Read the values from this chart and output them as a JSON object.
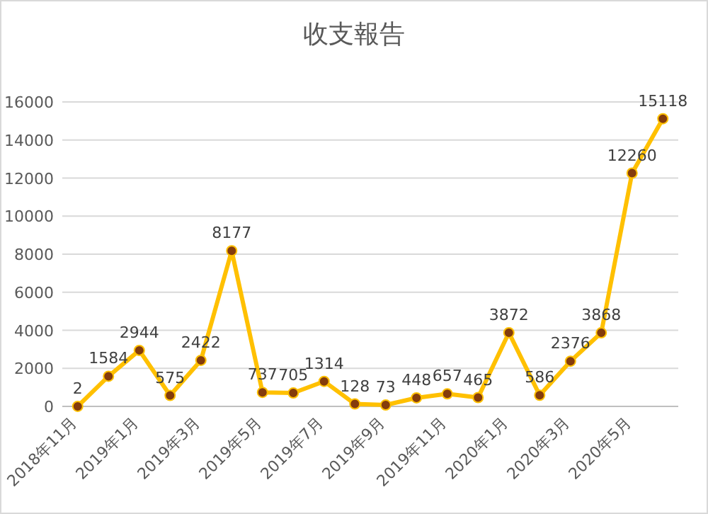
{
  "chart_data": {
    "type": "line",
    "title": "收支報告",
    "categories": [
      "2018年11月",
      null,
      "2019年1月",
      null,
      "2019年3月",
      null,
      "2019年5月",
      null,
      "2019年7月",
      null,
      "2019年9月",
      null,
      "2019年11月",
      null,
      "2020年1月",
      null,
      "2020年3月",
      null,
      "2020年5月",
      null
    ],
    "series": [
      {
        "color": "#ffc000",
        "values": [
          2,
          1584,
          2944,
          575,
          2422,
          8177,
          737,
          705,
          1314,
          128,
          73,
          448,
          657,
          465,
          3872,
          586,
          2376,
          3868,
          12260,
          15118
        ]
      }
    ],
    "ylim": [
      0,
      16000
    ],
    "yticks": [
      0,
      2000,
      4000,
      6000,
      8000,
      10000,
      12000,
      14000,
      16000
    ],
    "grid": "y",
    "data_labels": true,
    "marker": "circle",
    "line_style": "solid"
  }
}
